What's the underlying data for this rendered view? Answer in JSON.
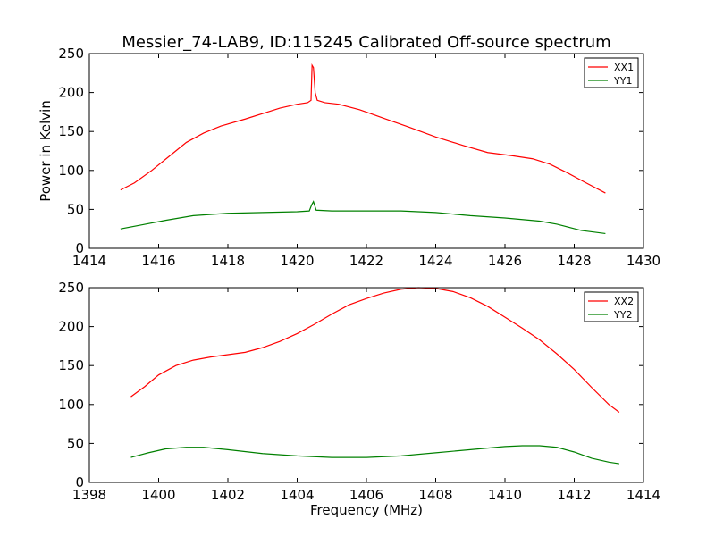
{
  "title": "Messier_74-LAB9, ID:115245 Calibrated Off-source spectrum",
  "chart_data": [
    {
      "type": "line",
      "ylabel": "Power in Kelvin",
      "xlabel": "",
      "xlim": [
        1414,
        1430
      ],
      "ylim": [
        0,
        250
      ],
      "xticks": [
        1414,
        1416,
        1418,
        1420,
        1422,
        1424,
        1426,
        1428,
        1430
      ],
      "yticks": [
        0,
        50,
        100,
        150,
        200,
        250
      ],
      "legend": "top-right",
      "grid": false,
      "series": [
        {
          "name": "XX1",
          "color": "#ff0000",
          "points": [
            [
              1414.9,
              75
            ],
            [
              1415.3,
              84
            ],
            [
              1415.8,
              100
            ],
            [
              1416.3,
              118
            ],
            [
              1416.8,
              136
            ],
            [
              1417.3,
              148
            ],
            [
              1417.8,
              157
            ],
            [
              1418.5,
              166
            ],
            [
              1419.0,
              173
            ],
            [
              1419.5,
              180
            ],
            [
              1420.0,
              185
            ],
            [
              1420.3,
              187
            ],
            [
              1420.4,
              190
            ],
            [
              1420.43,
              235
            ],
            [
              1420.47,
              232
            ],
            [
              1420.52,
              200
            ],
            [
              1420.58,
              190
            ],
            [
              1420.8,
              187
            ],
            [
              1421.2,
              185
            ],
            [
              1421.8,
              178
            ],
            [
              1422.5,
              167
            ],
            [
              1423.2,
              156
            ],
            [
              1424.0,
              143
            ],
            [
              1424.8,
              132
            ],
            [
              1425.5,
              123
            ],
            [
              1426.2,
              119
            ],
            [
              1426.8,
              115
            ],
            [
              1427.3,
              108
            ],
            [
              1427.8,
              97
            ],
            [
              1428.3,
              85
            ],
            [
              1428.9,
              71
            ]
          ]
        },
        {
          "name": "YY1",
          "color": "#008000",
          "points": [
            [
              1414.9,
              25
            ],
            [
              1415.5,
              30
            ],
            [
              1416.2,
              36
            ],
            [
              1417.0,
              42
            ],
            [
              1418.0,
              45
            ],
            [
              1419.0,
              46
            ],
            [
              1420.0,
              47
            ],
            [
              1420.35,
              48
            ],
            [
              1420.42,
              56
            ],
            [
              1420.47,
              60
            ],
            [
              1420.55,
              49
            ],
            [
              1421.0,
              48
            ],
            [
              1422.0,
              48
            ],
            [
              1423.0,
              48
            ],
            [
              1424.0,
              46
            ],
            [
              1425.0,
              42
            ],
            [
              1426.0,
              39
            ],
            [
              1427.0,
              35
            ],
            [
              1427.5,
              31
            ],
            [
              1428.2,
              23
            ],
            [
              1428.9,
              19
            ]
          ]
        }
      ]
    },
    {
      "type": "line",
      "ylabel": "",
      "xlabel": "Frequency (MHz)",
      "xlim": [
        1398,
        1414
      ],
      "ylim": [
        0,
        250
      ],
      "xticks": [
        1398,
        1400,
        1402,
        1404,
        1406,
        1408,
        1410,
        1412,
        1414
      ],
      "yticks": [
        0,
        50,
        100,
        150,
        200,
        250
      ],
      "legend": "top-right",
      "grid": false,
      "series": [
        {
          "name": "XX2",
          "color": "#ff0000",
          "points": [
            [
              1399.2,
              110
            ],
            [
              1399.6,
              123
            ],
            [
              1400.0,
              138
            ],
            [
              1400.5,
              150
            ],
            [
              1401.0,
              157
            ],
            [
              1401.5,
              161
            ],
            [
              1402.0,
              164
            ],
            [
              1402.5,
              167
            ],
            [
              1403.0,
              173
            ],
            [
              1403.5,
              181
            ],
            [
              1404.0,
              191
            ],
            [
              1404.5,
              203
            ],
            [
              1405.0,
              216
            ],
            [
              1405.5,
              228
            ],
            [
              1406.0,
              236
            ],
            [
              1406.5,
              243
            ],
            [
              1407.0,
              248
            ],
            [
              1407.5,
              250
            ],
            [
              1408.0,
              249
            ],
            [
              1408.5,
              245
            ],
            [
              1409.0,
              237
            ],
            [
              1409.5,
              226
            ],
            [
              1410.0,
              212
            ],
            [
              1410.5,
              198
            ],
            [
              1411.0,
              183
            ],
            [
              1411.5,
              165
            ],
            [
              1412.0,
              145
            ],
            [
              1412.5,
              122
            ],
            [
              1413.0,
              100
            ],
            [
              1413.3,
              90
            ]
          ]
        },
        {
          "name": "YY2",
          "color": "#008000",
          "points": [
            [
              1399.2,
              32
            ],
            [
              1399.7,
              38
            ],
            [
              1400.2,
              43
            ],
            [
              1400.8,
              45
            ],
            [
              1401.3,
              45
            ],
            [
              1402.0,
              42
            ],
            [
              1403.0,
              37
            ],
            [
              1404.0,
              34
            ],
            [
              1405.0,
              32
            ],
            [
              1406.0,
              32
            ],
            [
              1407.0,
              34
            ],
            [
              1408.0,
              38
            ],
            [
              1409.0,
              42
            ],
            [
              1410.0,
              46
            ],
            [
              1410.5,
              47
            ],
            [
              1411.0,
              47
            ],
            [
              1411.5,
              45
            ],
            [
              1412.0,
              39
            ],
            [
              1412.5,
              31
            ],
            [
              1413.0,
              26
            ],
            [
              1413.3,
              24
            ]
          ]
        }
      ]
    }
  ]
}
